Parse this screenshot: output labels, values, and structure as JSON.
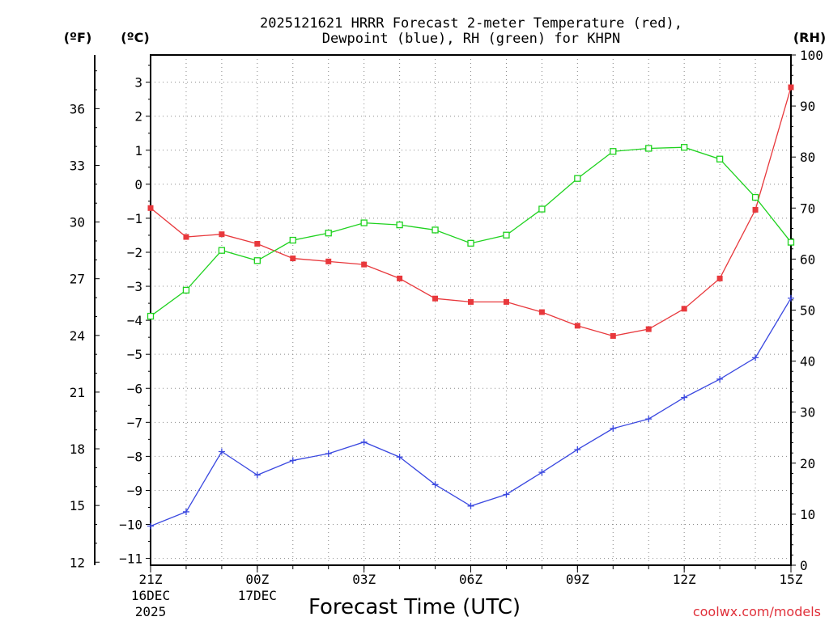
{
  "chart_data": {
    "type": "line",
    "title_line1": "2025121621 HRRR Forecast 2-meter Temperature (red),",
    "title_line2": "Dewpoint (blue), RH (green) for KHPN",
    "xlabel": "Forecast Time (UTC)",
    "credit": "coolwx.com/models",
    "unit_f": "(ºF)",
    "unit_c": "(ºC)",
    "unit_rh": "(RH)",
    "x_hours": [
      0,
      1,
      2,
      3,
      4,
      5,
      6,
      7,
      8,
      9,
      10,
      11,
      12,
      13,
      14,
      15,
      16,
      17,
      18
    ],
    "x_ticks": [
      {
        "hour": 0,
        "label": "21Z",
        "date1": "16DEC",
        "date2": "2025"
      },
      {
        "hour": 3,
        "label": "00Z",
        "date1": "17DEC",
        "date2": ""
      },
      {
        "hour": 6,
        "label": "03Z",
        "date1": "",
        "date2": ""
      },
      {
        "hour": 9,
        "label": "06Z",
        "date1": "",
        "date2": ""
      },
      {
        "hour": 12,
        "label": "09Z",
        "date1": "",
        "date2": ""
      },
      {
        "hour": 15,
        "label": "12Z",
        "date1": "",
        "date2": ""
      },
      {
        "hour": 18,
        "label": "15Z",
        "date1": "",
        "date2": ""
      }
    ],
    "c_axis": {
      "range": [
        -11.2,
        3.8
      ],
      "ticks": [
        3,
        2,
        1,
        0,
        -1,
        -2,
        -3,
        -4,
        -5,
        -6,
        -7,
        -8,
        -9,
        -10,
        -11
      ],
      "tick_labels": [
        "3",
        "2",
        "1",
        "0",
        "−1",
        "−2",
        "−3",
        "−4",
        "−5",
        "−6",
        "−7",
        "−8",
        "−9",
        "−10",
        "−11"
      ]
    },
    "f_axis": {
      "ticks": [
        36,
        33,
        30,
        27,
        24,
        21,
        18,
        15,
        12
      ],
      "tick_labels": [
        "36",
        "33",
        "30",
        "27",
        "24",
        "21",
        "18",
        "15",
        "12"
      ]
    },
    "rh_axis": {
      "range": [
        0,
        100
      ],
      "ticks": [
        100,
        90,
        80,
        70,
        60,
        50,
        40,
        30,
        20,
        10,
        0
      ],
      "tick_labels": [
        "100",
        "90",
        "80",
        "70",
        "60",
        "50",
        "40",
        "30",
        "20",
        "10",
        "0"
      ]
    },
    "series": [
      {
        "name": "Temperature",
        "unit": "C",
        "color": "#e8383c",
        "marker": "filled-square",
        "values": [
          -0.7,
          -1.55,
          -1.47,
          -1.75,
          -2.18,
          -2.27,
          -2.36,
          -2.77,
          -3.36,
          -3.46,
          -3.46,
          -3.76,
          -4.16,
          -4.46,
          -4.26,
          -3.66,
          -2.77,
          -0.75,
          2.85
        ]
      },
      {
        "name": "Dewpoint",
        "unit": "C",
        "color": "#3a48e0",
        "marker": "plus",
        "values": [
          -10.05,
          -9.63,
          -7.86,
          -8.55,
          -8.12,
          -7.92,
          -7.58,
          -8.02,
          -8.83,
          -9.46,
          -9.12,
          -8.47,
          -7.8,
          -7.18,
          -6.9,
          -6.27,
          -5.73,
          -5.1,
          -3.35
        ]
      },
      {
        "name": "RH",
        "unit": "%",
        "color": "#1ed21e",
        "marker": "open-square",
        "values": [
          48.8,
          53.9,
          61.7,
          59.7,
          63.7,
          65.1,
          67.1,
          66.7,
          65.7,
          63.1,
          64.7,
          69.8,
          75.8,
          81.1,
          81.7,
          81.9,
          79.6,
          72.1,
          63.3
        ]
      }
    ]
  }
}
